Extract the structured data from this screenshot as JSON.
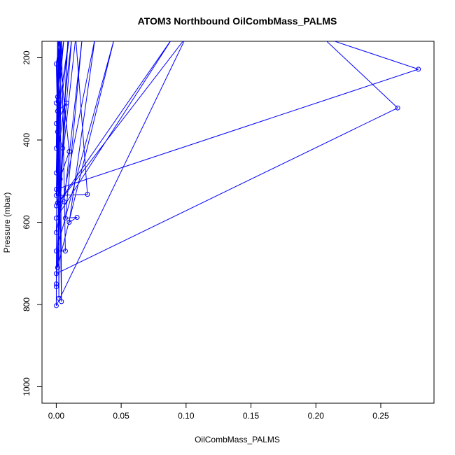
{
  "chart_data": {
    "type": "line",
    "title": "ATOM3 Northbound OilCombMass_PALMS",
    "xlabel": "OilCombMass_PALMS",
    "ylabel": "Pressure (mbar)",
    "xlim": [
      -0.011,
      0.291
    ],
    "ylim": [
      1040,
      160
    ],
    "y_reversed": true,
    "x_ticks": [
      0.0,
      0.05,
      0.1,
      0.15,
      0.2,
      0.25
    ],
    "x_tick_labels": [
      "0.00",
      "0.05",
      "0.10",
      "0.15",
      "0.20",
      "0.25"
    ],
    "y_ticks": [
      200,
      400,
      600,
      800,
      1000
    ],
    "y_tick_labels": [
      "200",
      "400",
      "600",
      "800",
      "1000"
    ],
    "grid": false,
    "legend": "none",
    "color": "#0000ff",
    "series": [
      {
        "points": [
          {
            "x": 0.0,
            "y": 420
          },
          {
            "x": 0.001,
            "y": 150
          },
          {
            "x": 0.002,
            "y": 520
          },
          {
            "x": 0.0,
            "y": 215
          },
          {
            "x": 0.003,
            "y": 150
          },
          {
            "x": 0.001,
            "y": 295
          },
          {
            "x": 0.004,
            "y": 150
          },
          {
            "x": 0.0,
            "y": 310
          },
          {
            "x": 0.006,
            "y": 150
          },
          {
            "x": 0.001,
            "y": 330
          },
          {
            "x": 0.008,
            "y": 310
          },
          {
            "x": 0.0,
            "y": 360
          },
          {
            "x": 0.01,
            "y": 150
          },
          {
            "x": 0.001,
            "y": 380
          },
          {
            "x": 0.005,
            "y": 420
          },
          {
            "x": 0.012,
            "y": 150
          },
          {
            "x": 0.0,
            "y": 480
          },
          {
            "x": 0.002,
            "y": 150
          },
          {
            "x": 0.0,
            "y": 535
          },
          {
            "x": 0.024,
            "y": 532
          },
          {
            "x": 0.015,
            "y": 150
          },
          {
            "x": 0.001,
            "y": 553
          },
          {
            "x": 0.006,
            "y": 550
          },
          {
            "x": 0.02,
            "y": 150
          },
          {
            "x": 0.007,
            "y": 590
          },
          {
            "x": 0.016,
            "y": 588
          },
          {
            "x": 0.01,
            "y": 600
          },
          {
            "x": 0.03,
            "y": 150
          },
          {
            "x": 0.0,
            "y": 625
          },
          {
            "x": 0.004,
            "y": 150
          },
          {
            "x": 0.007,
            "y": 670
          },
          {
            "x": 0.0,
            "y": 670
          },
          {
            "x": 0.045,
            "y": 150
          },
          {
            "x": 0.001,
            "y": 710
          },
          {
            "x": 0.009,
            "y": 150
          },
          {
            "x": 0.0,
            "y": 725
          },
          {
            "x": 0.263,
            "y": 322
          },
          {
            "x": 0.205,
            "y": 150
          },
          {
            "x": 0.279,
            "y": 228
          },
          {
            "x": 0.0,
            "y": 520
          },
          {
            "x": 0.01,
            "y": 428
          },
          {
            "x": 0.001,
            "y": 150
          },
          {
            "x": 0.003,
            "y": 495
          },
          {
            "x": 0.0,
            "y": 750
          },
          {
            "x": 0.002,
            "y": 150
          },
          {
            "x": 0.0,
            "y": 757
          },
          {
            "x": 0.001,
            "y": 150
          },
          {
            "x": 0.002,
            "y": 785
          },
          {
            "x": 0.003,
            "y": 150
          },
          {
            "x": 0.004,
            "y": 793
          },
          {
            "x": 0.001,
            "y": 150
          },
          {
            "x": 0.0,
            "y": 803
          },
          {
            "x": 0.1,
            "y": 150
          },
          {
            "x": 0.0,
            "y": 560
          },
          {
            "x": 0.09,
            "y": 150
          },
          {
            "x": 0.0,
            "y": 590
          }
        ]
      }
    ]
  }
}
